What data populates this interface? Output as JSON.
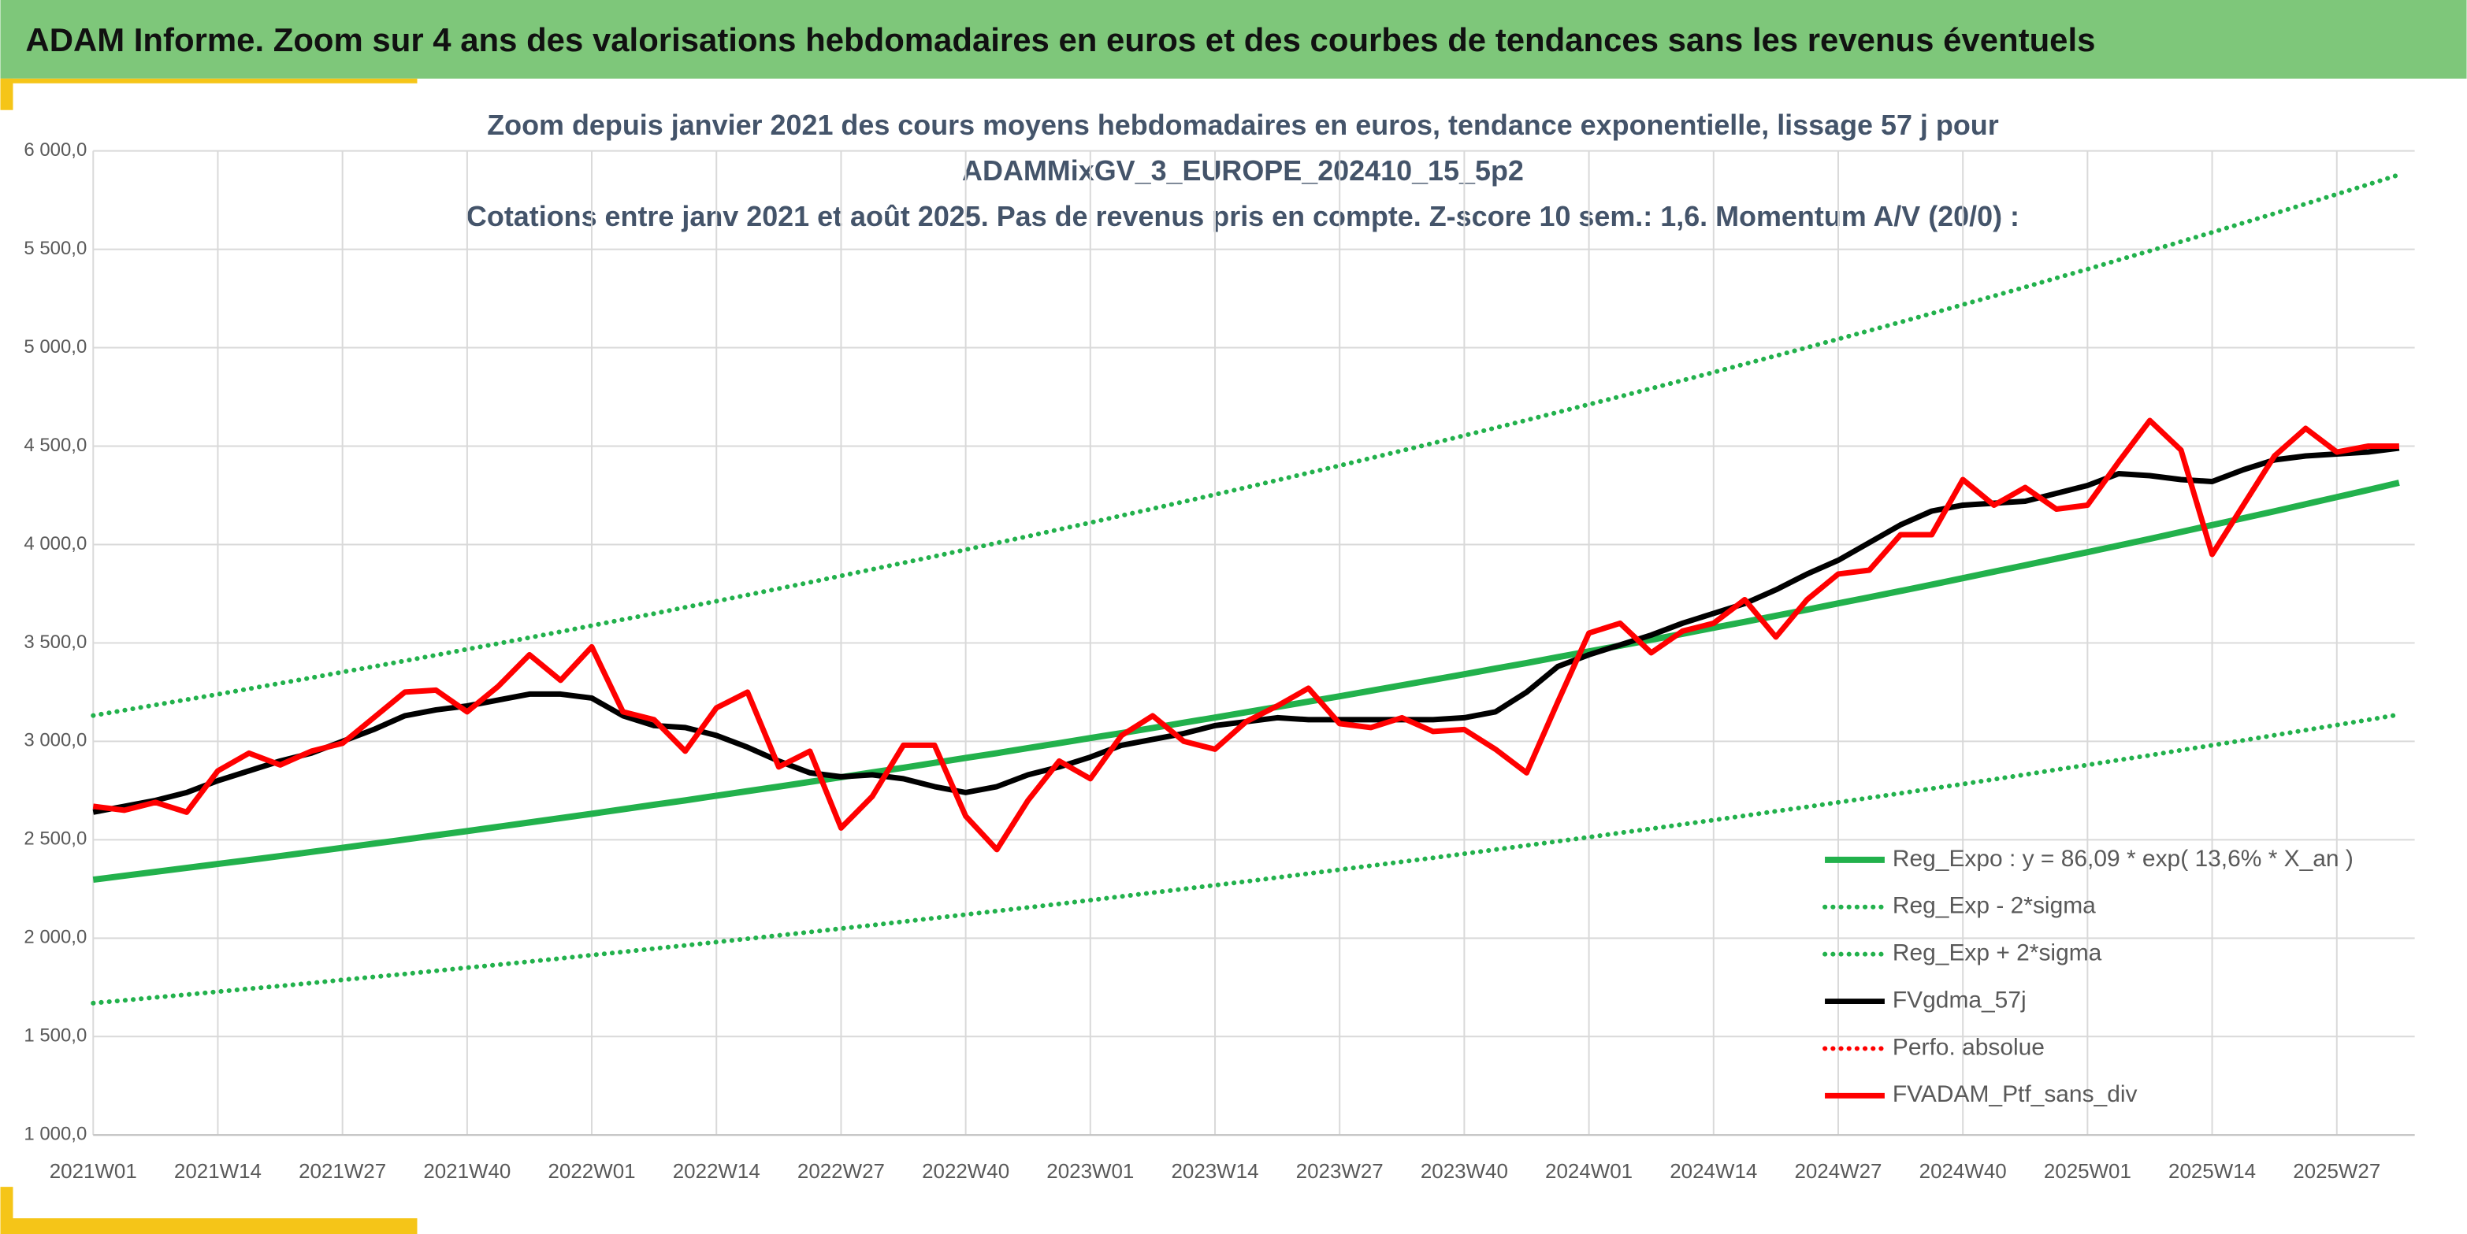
{
  "header": {
    "title": "ADAM Informe. Zoom sur 4 ans des valorisations hebdomadaires en euros et des courbes de tendances sans les revenus éventuels"
  },
  "chart_data": {
    "type": "line",
    "title": [
      "Zoom depuis janvier 2021 des cours moyens hebdomadaires en euros, tendance exponentielle, lissage 57 j pour",
      "ADAMMixGV_3_EUROPE_202410_15_5p2",
      "Cotations entre janv 2021 et août 2025. Pas de revenus pris en compte. Z-score 10 sem.: 1,6. Momentum A/V (20/0) :"
    ],
    "categories": [
      "2021W01",
      null,
      null,
      null,
      "2021W14",
      null,
      null,
      null,
      "2021W27",
      null,
      null,
      null,
      "2021W40",
      null,
      null,
      null,
      "2022W01",
      null,
      null,
      null,
      "2022W14",
      null,
      null,
      null,
      "2022W27",
      null,
      null,
      null,
      "2022W40",
      null,
      null,
      null,
      "2023W01",
      null,
      null,
      null,
      "2023W14",
      null,
      null,
      null,
      "2023W27",
      null,
      null,
      null,
      "2023W40",
      null,
      null,
      null,
      "2024W01",
      null,
      null,
      null,
      "2024W14",
      null,
      null,
      null,
      "2024W27",
      null,
      null,
      null,
      "2024W40",
      null,
      null,
      null,
      "2025W01",
      null,
      null,
      null,
      "2025W14",
      null,
      null,
      null,
      "2025W27",
      null,
      null
    ],
    "ylim": [
      1000,
      6000
    ],
    "yticks": [
      {
        "value": 1000,
        "label": "1 000,0"
      },
      {
        "value": 1500,
        "label": "1 500,0"
      },
      {
        "value": 2000,
        "label": "2 000,0"
      },
      {
        "value": 2500,
        "label": "2 500,0"
      },
      {
        "value": 3000,
        "label": "3 000,0"
      },
      {
        "value": 3500,
        "label": "3 500,0"
      },
      {
        "value": 4000,
        "label": "4 000,0"
      },
      {
        "value": 4500,
        "label": "4 500,0"
      },
      {
        "value": 5000,
        "label": "5 000,0"
      },
      {
        "value": 5500,
        "label": "5 500,0"
      },
      {
        "value": 6000,
        "label": "6 000,0"
      }
    ],
    "grid": true,
    "legend": "lower-right",
    "series": [
      {
        "name": "Reg_Expo : y = 86,09 * exp( 13,6% *  X_an )",
        "color": "#22b14c",
        "style": "solid",
        "values": [
          2297,
          2317,
          2337,
          2357,
          2377,
          2397,
          2417,
          2438,
          2459,
          2480,
          2501,
          2523,
          2544,
          2566,
          2588,
          2610,
          2632,
          2655,
          2678,
          2700,
          2724,
          2747,
          2770,
          2794,
          2818,
          2842,
          2866,
          2891,
          2916,
          2940,
          2966,
          2991,
          3017,
          3042,
          3068,
          3095,
          3121,
          3148,
          3175,
          3202,
          3229,
          3257,
          3285,
          3313,
          3341,
          3370,
          3398,
          3428,
          3457,
          3486,
          3516,
          3546,
          3577,
          3607,
          3638,
          3669,
          3701,
          3732,
          3764,
          3796,
          3829,
          3862,
          3895,
          3928,
          3961,
          3995,
          4029,
          4064,
          4099,
          4134,
          4169,
          4205,
          4241,
          4277,
          4314
        ]
      },
      {
        "name": "Reg_Exp - 2*sigma",
        "color": "#22b14c",
        "style": "dotted",
        "values": [
          1670,
          1684,
          1699,
          1713,
          1728,
          1743,
          1757,
          1772,
          1788,
          1803,
          1818,
          1834,
          1850,
          1865,
          1881,
          1897,
          1914,
          1930,
          1947,
          1963,
          1980,
          1997,
          2014,
          2031,
          2049,
          2066,
          2084,
          2102,
          2120,
          2138,
          2156,
          2174,
          2193,
          2212,
          2231,
          2250,
          2269,
          2288,
          2308,
          2328,
          2348,
          2368,
          2388,
          2408,
          2429,
          2450,
          2471,
          2492,
          2513,
          2535,
          2556,
          2578,
          2600,
          2622,
          2645,
          2667,
          2690,
          2713,
          2736,
          2760,
          2783,
          2807,
          2831,
          2856,
          2880,
          2905,
          2929,
          2955,
          2980,
          3005,
          3031,
          3057,
          3083,
          3109,
          3136
        ]
      },
      {
        "name": "Reg_Exp + 2*sigma",
        "color": "#22b14c",
        "style": "dotted",
        "values": [
          3131,
          3158,
          3185,
          3212,
          3239,
          3267,
          3295,
          3323,
          3352,
          3380,
          3409,
          3438,
          3468,
          3497,
          3527,
          3557,
          3588,
          3619,
          3649,
          3681,
          3712,
          3744,
          3776,
          3808,
          3841,
          3874,
          3907,
          3940,
          3974,
          4008,
          4042,
          4077,
          4111,
          4147,
          4182,
          4218,
          4254,
          4290,
          4327,
          4364,
          4401,
          4439,
          4477,
          4515,
          4554,
          4593,
          4632,
          4672,
          4712,
          4752,
          4793,
          4834,
          4875,
          4917,
          4959,
          5001,
          5044,
          5087,
          5130,
          5174,
          5219,
          5263,
          5308,
          5354,
          5399,
          5446,
          5492,
          5539,
          5586,
          5634,
          5682,
          5731,
          5780,
          5829,
          5879
        ]
      },
      {
        "name": "FVgdma_57j",
        "color": "#000000",
        "style": "solid",
        "values": [
          2640,
          2670,
          2700,
          2740,
          2800,
          2850,
          2900,
          2940,
          3000,
          3060,
          3130,
          3160,
          3180,
          3210,
          3240,
          3240,
          3220,
          3130,
          3080,
          3070,
          3030,
          2970,
          2900,
          2840,
          2820,
          2830,
          2810,
          2770,
          2740,
          2770,
          2830,
          2870,
          2920,
          2980,
          3010,
          3040,
          3080,
          3100,
          3120,
          3110,
          3110,
          3110,
          3110,
          3110,
          3120,
          3150,
          3250,
          3380,
          3440,
          3490,
          3540,
          3600,
          3650,
          3700,
          3770,
          3850,
          3920,
          4010,
          4100,
          4170,
          4200,
          4210,
          4220,
          4260,
          4300,
          4360,
          4350,
          4330,
          4320,
          4380,
          4430,
          4450,
          4460,
          4470,
          4490
        ]
      },
      {
        "name": "Perfo. absolue",
        "color": "#ff0000",
        "style": "dotted"
      },
      {
        "name": "FVADAM_Ptf_sans_div",
        "color": "#ff0000",
        "style": "solid",
        "values": [
          2670,
          2650,
          2690,
          2640,
          2850,
          2940,
          2880,
          2950,
          2990,
          3120,
          3250,
          3260,
          3150,
          3280,
          3440,
          3310,
          3480,
          3150,
          3110,
          2950,
          3170,
          3250,
          2870,
          2950,
          2560,
          2720,
          2980,
          2980,
          2620,
          2450,
          2700,
          2900,
          2810,
          3030,
          3130,
          3000,
          2960,
          3100,
          3180,
          3270,
          3090,
          3070,
          3120,
          3050,
          3060,
          2960,
          2840,
          3200,
          3550,
          3600,
          3450,
          3560,
          3600,
          3720,
          3530,
          3720,
          3850,
          3870,
          4050,
          4050,
          4330,
          4200,
          4290,
          4180,
          4200,
          4420,
          4630,
          4480,
          3950,
          4200,
          4450,
          4590,
          4470,
          4500,
          4500
        ]
      }
    ]
  }
}
